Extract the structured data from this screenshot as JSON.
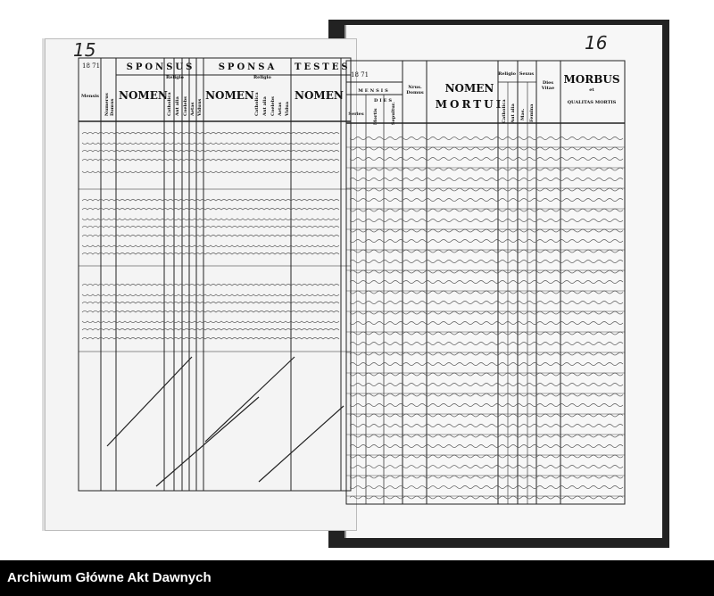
{
  "left_page": {
    "page_number": "15",
    "year": "18 71",
    "headers": {
      "mensis": "Mensis",
      "numerus_domus": "Numerus Domus",
      "sponsus": "SPONSUS",
      "sponsa": "SPONSA",
      "testes": "TESTES",
      "nomen": "NOMEN",
      "religio": "Religio",
      "catholica": "Catholica",
      "aut_alia": "Aut alia",
      "coelebs": "Coelebs",
      "aetas": "Aetas",
      "viduus": "Viduus",
      "vidua": "Vidua"
    }
  },
  "right_page": {
    "page_number": "16",
    "year": "18 71",
    "headers": {
      "mensis": "MENSIS",
      "dies": "DIES",
      "series": "Series",
      "mortis": "Mortis",
      "sepultur": "Sepultur.",
      "nrus_domus": "Nrus. Domus",
      "nomen": "NOMEN",
      "mortui": "MORTUI",
      "religio": "Religio",
      "sexus": "Sexus",
      "catholica": "Catholica",
      "aut_alia": "Aut alia",
      "mas": "Mas.",
      "femina": "Femina",
      "dies_vitae": "Dies Vitae",
      "morbus": "MORBUS",
      "et": "et",
      "qualitas": "QUALITAS MORTIS"
    }
  },
  "footer": {
    "institution": "Archiwum Główne Akt Dawnych"
  }
}
